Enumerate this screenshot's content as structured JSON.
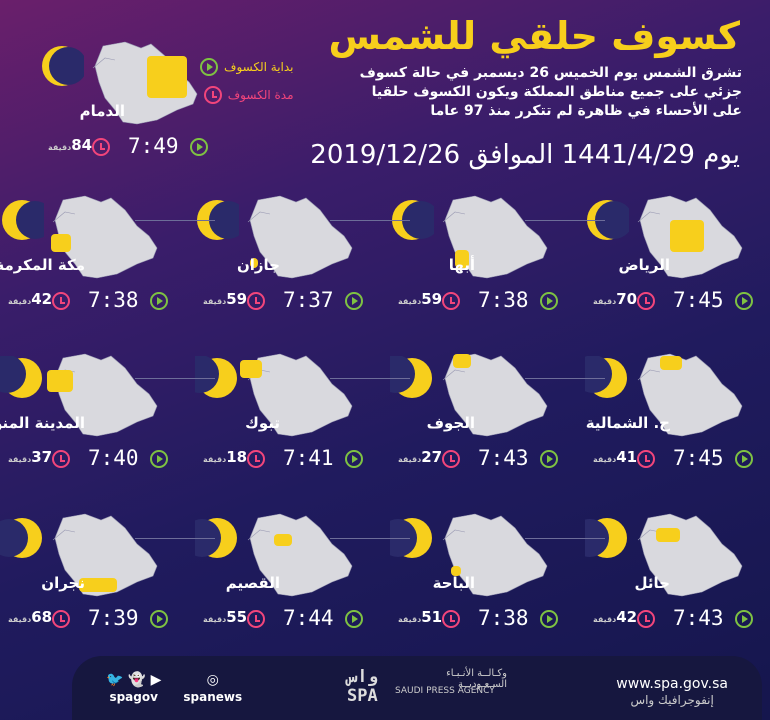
{
  "title": "كسوف حلقي للشمس",
  "description": "تشرق الشمس يوم الخميس 26 ديسمبر في حالة كسوف جزئي على جميع مناطق المملكة ويكون الكسوف حلقيا على الأحساء في ظاهرة لم تتكرر  منذ 97 عاما",
  "date_line": "يوم 1441/4/29 الموافق 2019/12/26",
  "legend": {
    "start": "بداية الكسوف",
    "duration": "مدة الكسوف"
  },
  "minutes_unit": "دقيقة",
  "colors": {
    "accent": "#f7cf1c",
    "start_icon": "#7ec242",
    "duration_icon": "#f2457b",
    "map": "#d9d9de"
  },
  "cities": [
    {
      "name": "الدمام",
      "time": "7:49",
      "minutes": "84"
    },
    {
      "name": "الرياض",
      "time": "7:45",
      "minutes": "70"
    },
    {
      "name": "أبها",
      "time": "7:38",
      "minutes": "59"
    },
    {
      "name": "جازان",
      "time": "7:37",
      "minutes": "59"
    },
    {
      "name": "مكة المكرمة",
      "time": "7:38",
      "minutes": "42"
    },
    {
      "name": "ح. الشمالية",
      "time": "7:45",
      "minutes": "41"
    },
    {
      "name": "الجوف",
      "time": "7:43",
      "minutes": "27"
    },
    {
      "name": "تبوك",
      "time": "7:41",
      "minutes": "18"
    },
    {
      "name": "المدينة المنورة",
      "time": "7:40",
      "minutes": "37"
    },
    {
      "name": "حائل",
      "time": "7:43",
      "minutes": "42"
    },
    {
      "name": "الباحة",
      "time": "7:38",
      "minutes": "51"
    },
    {
      "name": "القصيم",
      "time": "7:44",
      "minutes": "55"
    },
    {
      "name": "نجران",
      "time": "7:39",
      "minutes": "68"
    }
  ],
  "footer": {
    "url": "www.spa.gov.sa",
    "url_ar": "إنفوجرافيك واس",
    "logo_mark": "واس SPA",
    "logo_ar": "وكـالــة الأنـبـاء السـعـوديــة",
    "logo_en": "SAUDI PRESS AGENCY",
    "social1": "spagov",
    "social2": "spanews"
  }
}
